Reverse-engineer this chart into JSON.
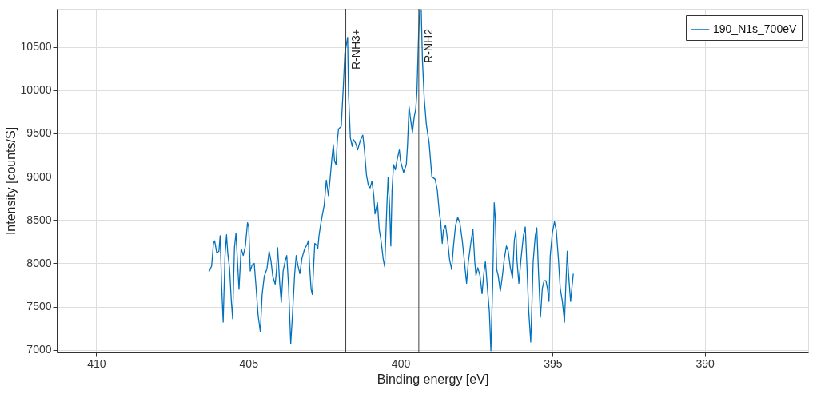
{
  "chart_data": {
    "type": "line",
    "xlabel": "Binding energy [eV]",
    "ylabel": "Intensity [counts/S]",
    "xlim": [
      411.3,
      386.6
    ],
    "ylim": [
      6970,
      10940
    ],
    "xticks": [
      410,
      405,
      400,
      395,
      390
    ],
    "yticks": [
      7000,
      7500,
      8000,
      8500,
      9000,
      9500,
      10000,
      10500
    ],
    "grid": true,
    "legend": "top right",
    "line_style": "solid",
    "marker": "none",
    "ref_lines": [
      {
        "axis": "x",
        "value": 401.8,
        "label": "R-NH3+",
        "color": "#404040"
      },
      {
        "axis": "x",
        "value": 399.4,
        "label": "R-NH2",
        "color": "#404040"
      }
    ],
    "series": [
      {
        "name": "190_N1s_700eV",
        "color": "#0072bd",
        "x": [
          406.3,
          406.21,
          406.15,
          406.11,
          406.04,
          405.97,
          405.93,
          405.88,
          405.83,
          405.77,
          405.72,
          405.68,
          405.62,
          405.56,
          405.52,
          405.46,
          405.41,
          405.37,
          405.31,
          405.24,
          405.17,
          405.1,
          405.03,
          404.99,
          404.94,
          404.88,
          404.81,
          404.75,
          404.68,
          404.61,
          404.55,
          404.48,
          404.39,
          404.32,
          404.26,
          404.2,
          404.12,
          404.08,
          404.04,
          403.97,
          403.92,
          403.86,
          403.79,
          403.74,
          403.68,
          403.61,
          403.55,
          403.48,
          403.43,
          403.37,
          403.31,
          403.24,
          403.15,
          403.08,
          403.03,
          402.99,
          402.94,
          402.9,
          402.85,
          402.82,
          402.76,
          402.72,
          402.68,
          402.63,
          402.57,
          402.51,
          402.44,
          402.37,
          402.32,
          402.26,
          402.21,
          402.17,
          402.12,
          402.08,
          402.04,
          401.95,
          401.88,
          401.83,
          401.79,
          401.74,
          401.71,
          401.65,
          401.59,
          401.55,
          401.48,
          401.41,
          401.32,
          401.24,
          401.19,
          401.12,
          401.06,
          401.0,
          400.94,
          400.88,
          400.84,
          400.76,
          400.7,
          400.64,
          400.57,
          400.52,
          400.45,
          400.41,
          400.36,
          400.32,
          400.28,
          400.23,
          400.17,
          400.11,
          400.04,
          400.0,
          399.9,
          399.81,
          399.77,
          399.72,
          399.68,
          399.61,
          399.55,
          399.5,
          399.46,
          399.41,
          399.37,
          399.32,
          399.28,
          399.22,
          399.15,
          399.06,
          398.97,
          398.86,
          398.79,
          398.72,
          398.68,
          398.63,
          398.59,
          398.52,
          398.45,
          398.39,
          398.32,
          398.26,
          398.19,
          398.12,
          398.05,
          397.97,
          397.9,
          397.83,
          397.77,
          397.68,
          397.62,
          397.56,
          397.52,
          397.46,
          397.39,
          397.32,
          397.26,
          397.21,
          397.15,
          397.08,
          397.03,
          396.97,
          396.92,
          396.88,
          396.84,
          396.79,
          396.72,
          396.66,
          396.59,
          396.52,
          396.46,
          396.39,
          396.32,
          396.26,
          396.21,
          396.17,
          396.11,
          396.04,
          395.96,
          395.9,
          395.84,
          395.79,
          395.72,
          395.68,
          395.64,
          395.57,
          395.52,
          395.46,
          395.4,
          395.34,
          395.28,
          395.22,
          395.17,
          395.12,
          395.08,
          395.01,
          394.94,
          394.88,
          394.81,
          394.75,
          394.68,
          394.61,
          394.57,
          394.52,
          394.48,
          394.41,
          394.36,
          394.32
        ],
        "values": [
          7900,
          7970,
          8230,
          8260,
          8120,
          8140,
          8320,
          7730,
          7320,
          8090,
          8330,
          8120,
          7940,
          7550,
          7360,
          8180,
          8350,
          8090,
          7700,
          8170,
          8090,
          8200,
          8470,
          8420,
          7910,
          7980,
          8000,
          7730,
          7390,
          7210,
          7640,
          7850,
          7940,
          8140,
          8030,
          7850,
          7760,
          7910,
          8180,
          7760,
          7550,
          7910,
          8030,
          8090,
          7730,
          7070,
          7420,
          7880,
          8090,
          7970,
          7880,
          8060,
          8170,
          8210,
          8260,
          7970,
          7700,
          7640,
          8020,
          8230,
          8210,
          8170,
          8320,
          8440,
          8560,
          8670,
          8960,
          8780,
          8960,
          9200,
          9370,
          9180,
          9140,
          9400,
          9550,
          9580,
          10050,
          10430,
          10510,
          10610,
          9960,
          9450,
          9350,
          9430,
          9390,
          9310,
          9420,
          9480,
          9320,
          9020,
          8900,
          8870,
          8950,
          8780,
          8570,
          8700,
          8390,
          8260,
          8050,
          7960,
          8660,
          8990,
          8660,
          8200,
          8840,
          9140,
          9080,
          9200,
          9310,
          9180,
          9050,
          9140,
          9370,
          9810,
          9690,
          9510,
          9690,
          9780,
          9990,
          10600,
          10930,
          10930,
          10350,
          9900,
          9600,
          9390,
          9000,
          8970,
          8840,
          8570,
          8480,
          8230,
          8380,
          8440,
          8260,
          8050,
          7930,
          8200,
          8440,
          8530,
          8470,
          8260,
          8020,
          7770,
          8020,
          8260,
          8390,
          8020,
          7860,
          7950,
          7860,
          7650,
          7890,
          8020,
          7740,
          7440,
          6990,
          7770,
          8700,
          8500,
          7930,
          7860,
          7680,
          7830,
          8050,
          8200,
          8140,
          7950,
          7830,
          8260,
          8380,
          8020,
          7770,
          8050,
          8320,
          8420,
          7930,
          7470,
          7090,
          7530,
          8020,
          8320,
          8410,
          7860,
          7380,
          7710,
          7800,
          7800,
          7710,
          7560,
          8080,
          8350,
          8480,
          8380,
          8050,
          7710,
          7560,
          7320,
          7710,
          8140,
          7890,
          7560,
          7740,
          7880
        ]
      }
    ]
  }
}
